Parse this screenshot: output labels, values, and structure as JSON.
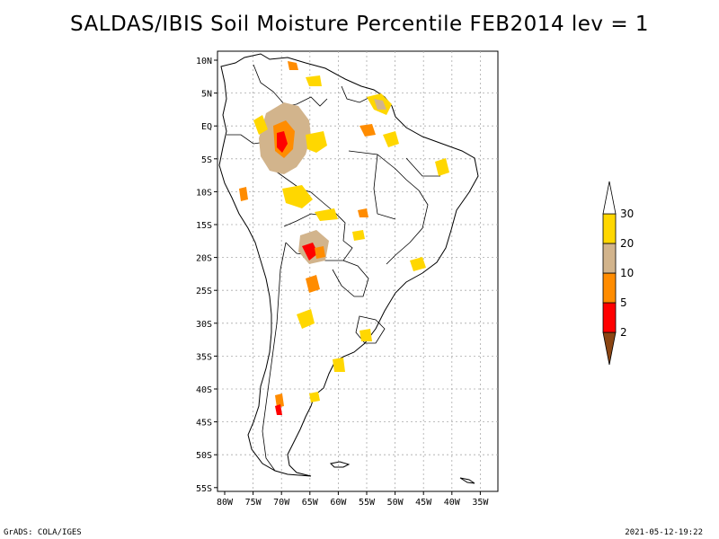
{
  "title": "SALDAS/IBIS Soil Moisture Percentile FEB2014 lev = 1",
  "lat_labels": [
    "10N",
    "5N",
    "EQ",
    "5S",
    "10S",
    "15S",
    "20S",
    "25S",
    "30S",
    "35S",
    "40S",
    "45S",
    "50S",
    "55S"
  ],
  "lon_labels": [
    "80W",
    "75W",
    "70W",
    "65W",
    "60W",
    "55W",
    "50W",
    "45W",
    "40W",
    "35W"
  ],
  "colorbar": {
    "levels": [
      "2",
      "5",
      "10",
      "20",
      "30"
    ],
    "colors": [
      "#8b4513",
      "#ff0000",
      "#ff8c00",
      "#d2b48c",
      "#ffd700",
      "#ffffff"
    ]
  },
  "footer_left": "GrADS: COLA/IGES",
  "footer_right": "2021-05-12-19:22"
}
